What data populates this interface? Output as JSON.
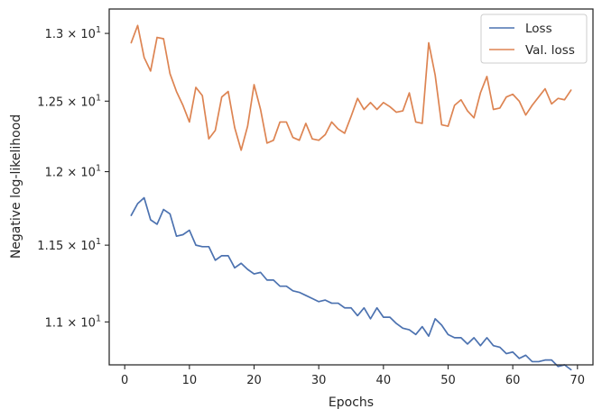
{
  "chart_data": {
    "type": "line",
    "title": "",
    "xlabel": "Epochs",
    "ylabel": "Negative log-likelihood",
    "yscale": "log",
    "xlim": [
      -2.4,
      72.4
    ],
    "ylim": [
      10.73,
      13.185
    ],
    "grid": false,
    "legend_position": "top-right",
    "x_ticks": [
      0,
      10,
      20,
      30,
      40,
      50,
      60,
      70
    ],
    "x_tick_labels": [
      "0",
      "10",
      "20",
      "30",
      "40",
      "50",
      "60",
      "70"
    ],
    "y_ticks": [
      {
        "value": 11.0,
        "mantissa": "1.1",
        "base": "10",
        "exp": "1"
      },
      {
        "value": 11.5,
        "mantissa": "1.15",
        "base": "10",
        "exp": "1"
      },
      {
        "value": 12.0,
        "mantissa": "1.2",
        "base": "10",
        "exp": "1"
      },
      {
        "value": 12.5,
        "mantissa": "1.25",
        "base": "10",
        "exp": "1"
      },
      {
        "value": 13.0,
        "mantissa": "1.3",
        "base": "10",
        "exp": "1"
      }
    ],
    "series": [
      {
        "name": "Loss",
        "color": "#4c72b0",
        "x": [
          1,
          2,
          3,
          4,
          5,
          6,
          7,
          8,
          9,
          10,
          11,
          12,
          13,
          14,
          15,
          16,
          17,
          18,
          19,
          20,
          21,
          22,
          23,
          24,
          25,
          26,
          27,
          28,
          29,
          30,
          31,
          32,
          33,
          34,
          35,
          36,
          37,
          38,
          39,
          40,
          41,
          42,
          43,
          44,
          45,
          46,
          47,
          48,
          49,
          50,
          51,
          52,
          53,
          54,
          55,
          56,
          57,
          58,
          59,
          60,
          61,
          62,
          63,
          64,
          65,
          66,
          67,
          68,
          69
        ],
        "values": [
          11.7,
          11.78,
          11.82,
          11.67,
          11.64,
          11.74,
          11.71,
          11.56,
          11.57,
          11.6,
          11.5,
          11.49,
          11.49,
          11.4,
          11.43,
          11.43,
          11.35,
          11.38,
          11.34,
          11.31,
          11.32,
          11.27,
          11.27,
          11.23,
          11.23,
          11.2,
          11.19,
          11.17,
          11.15,
          11.13,
          11.14,
          11.12,
          11.12,
          11.09,
          11.09,
          11.04,
          11.09,
          11.02,
          11.09,
          11.03,
          11.03,
          10.99,
          10.96,
          10.95,
          10.92,
          10.97,
          10.91,
          11.02,
          10.98,
          10.92,
          10.9,
          10.9,
          10.86,
          10.9,
          10.85,
          10.9,
          10.85,
          10.84,
          10.8,
          10.81,
          10.77,
          10.79,
          10.75,
          10.75,
          10.76,
          10.76,
          10.72,
          10.73,
          10.7
        ]
      },
      {
        "name": "Val. loss",
        "color": "#dd8452",
        "x": [
          1,
          2,
          3,
          4,
          5,
          6,
          7,
          8,
          9,
          10,
          11,
          12,
          13,
          14,
          15,
          16,
          17,
          18,
          19,
          20,
          21,
          22,
          23,
          24,
          25,
          26,
          27,
          28,
          29,
          30,
          31,
          32,
          33,
          34,
          35,
          36,
          37,
          38,
          39,
          40,
          41,
          42,
          43,
          44,
          45,
          46,
          47,
          48,
          49,
          50,
          51,
          52,
          53,
          54,
          55,
          56,
          57,
          58,
          59,
          60,
          61,
          62,
          63,
          64,
          65,
          66,
          67,
          68,
          69
        ],
        "values": [
          12.93,
          13.06,
          12.82,
          12.72,
          12.97,
          12.96,
          12.7,
          12.57,
          12.47,
          12.35,
          12.6,
          12.54,
          12.23,
          12.29,
          12.53,
          12.57,
          12.31,
          12.15,
          12.32,
          12.62,
          12.44,
          12.2,
          12.22,
          12.35,
          12.35,
          12.24,
          12.22,
          12.34,
          12.23,
          12.22,
          12.26,
          12.35,
          12.3,
          12.27,
          12.39,
          12.52,
          12.44,
          12.49,
          12.44,
          12.49,
          12.46,
          12.42,
          12.43,
          12.56,
          12.35,
          12.34,
          12.93,
          12.69,
          12.33,
          12.32,
          12.47,
          12.51,
          12.43,
          12.38,
          12.56,
          12.68,
          12.44,
          12.45,
          12.53,
          12.55,
          12.5,
          12.4,
          12.47,
          12.53,
          12.59,
          12.48,
          12.52,
          12.51,
          12.58
        ]
      }
    ]
  }
}
